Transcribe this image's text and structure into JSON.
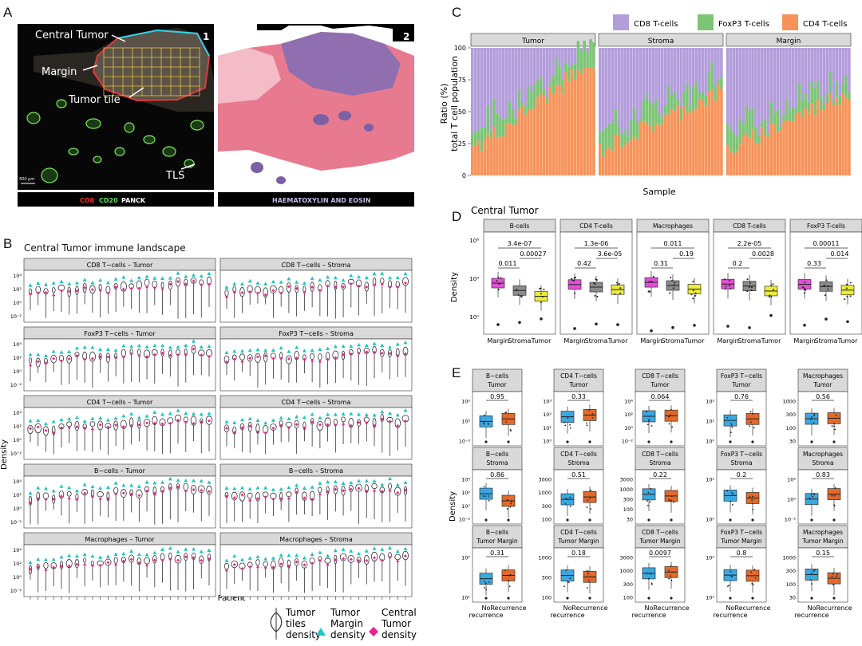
{
  "panels": {
    "a": "A",
    "b": "B",
    "c": "C",
    "d": "D",
    "e": "E"
  },
  "panel_a": {
    "img1_label": "1",
    "img2_label": "2",
    "annot_central_tumor": "Central Tumor",
    "annot_margin": "Margin",
    "annot_tumor_tile": "Tumor tile",
    "annot_tls": "TLS",
    "scale_bar": "500 µm",
    "legend_cd8": "CD8",
    "legend_cd20": "CD20",
    "legend_panck": "PANCK",
    "legend_he": "HAEMATOXYLIN AND EOSIN",
    "colors": {
      "cd8": "#ff2a2a",
      "cd20": "#5de05d",
      "panck": "#ffffff",
      "he": "#c9b7e8"
    }
  },
  "panel_b": {
    "title": "Central Tumor immune landscape",
    "ylabel": "Density",
    "xlabel": "Patient",
    "facets": [
      "CD8 T−cells – Tumor",
      "CD8 T−cells – Stroma",
      "FoxP3 T−cells – Tumor",
      "FoxP3 T−cells – Stroma",
      "CD4 T−cells – Tumor",
      "CD4 T−cells – Stroma",
      "B−cells – Tumor",
      "B−cells – Stroma",
      "Macrophages – Tumor",
      "Macrophages – Stroma"
    ],
    "y_ticks": [
      "10⁴",
      "10²",
      "10⁰",
      "10⁻²"
    ],
    "legend": {
      "tiles": "Tumor tiles density",
      "tiles_l1": "Tumor",
      "tiles_l2": "tiles",
      "tiles_l3": "density",
      "margin_l1": "Tumor",
      "margin_l2": "Margin",
      "margin_l3": "density",
      "central_l1": "Central",
      "central_l2": "Tumor",
      "central_l3": "density"
    },
    "colors": {
      "margin": "#1fc5c1",
      "central": "#e6278f",
      "violin": "#333333"
    }
  },
  "panel_c": {
    "legend": [
      "CD8 T-cells",
      "FoxP3 T-cells",
      "CD4 T-cells"
    ],
    "facets": [
      "Tumor",
      "Stroma",
      "Margin"
    ],
    "ylabel_l1": "Ratio (%)",
    "ylabel_l2": "total T cell population",
    "xlabel": "Sample",
    "y_ticks": [
      "100",
      "75",
      "50",
      "25",
      "0"
    ],
    "colors": {
      "cd8": "#b39ddb",
      "foxp3": "#7cc576",
      "cd4": "#f6935a"
    }
  },
  "panel_d": {
    "title": "Central Tumor",
    "ylabel": "Density",
    "y_ticks": [
      "10⁶",
      "10³",
      "10⁰"
    ],
    "x_labels": [
      "Margin",
      "Stroma",
      "Tumor"
    ],
    "facets": [
      {
        "name": "B-cells",
        "p_top": "3.4e-07",
        "p_left": "0.011",
        "p_right": "0.00027"
      },
      {
        "name": "CD4 T-cells",
        "p_top": "1.3e-06",
        "p_left": "0.42",
        "p_right": "3.6e-05"
      },
      {
        "name": "Macrophages",
        "p_top": "0.011",
        "p_left": "0.31",
        "p_right": "0.19"
      },
      {
        "name": "CD8 T-cells",
        "p_top": "2.2e-05",
        "p_left": "0.2",
        "p_right": "0.0028"
      },
      {
        "name": "FoxP3 T-cells",
        "p_top": "0.00011",
        "p_left": "0.33",
        "p_right": "0.014"
      }
    ],
    "colors": {
      "margin": "#e34fd6",
      "stroma": "#8c8c8c",
      "tumor": "#ecec3a"
    }
  },
  "panel_e": {
    "ylabel": "Density",
    "x_labels": [
      "No recurrence",
      "Recurrence"
    ],
    "x_no_l1": "No",
    "x_no_l2": "recurrence",
    "x_rec": "Recurrence",
    "rows": [
      [
        {
          "l1": "B−cells",
          "l2": "Tumor",
          "p": "0.95",
          "ticks": [
            "10³",
            "10⁰",
            "10⁻³"
          ]
        },
        {
          "l1": "CD4 T−cells",
          "l2": "Tumor",
          "p": "0.33",
          "ticks": [
            "10³",
            "10²",
            "10¹",
            "10⁰"
          ]
        },
        {
          "l1": "CD8 T−cells",
          "l2": "Tumor",
          "p": "0.064",
          "ticks": [
            "10⁴",
            "10²",
            "10⁰",
            "10⁻²"
          ]
        },
        {
          "l1": "FoxP3 T−cells",
          "l2": "Tumor",
          "p": "0.76",
          "ticks": [
            "10²",
            "10¹",
            "10⁰"
          ]
        },
        {
          "l1": "Macrophages",
          "l2": "Tumor",
          "p": "0.56",
          "ticks": [
            "1000",
            "300",
            "100",
            "30"
          ]
        }
      ],
      [
        {
          "l1": "B−cells",
          "l2": "Stroma",
          "p": "0.86",
          "ticks": [
            "10⁴",
            "10²",
            "10⁰",
            "10⁻²"
          ]
        },
        {
          "l1": "CD4 T−cells",
          "l2": "Stroma",
          "p": "0.51",
          "ticks": [
            "3000",
            "1000",
            "300",
            "100"
          ]
        },
        {
          "l1": "CD8 T−cells",
          "l2": "Stroma",
          "p": "0.22",
          "ticks": [
            "3000",
            "1000",
            "300",
            "100",
            "30"
          ]
        },
        {
          "l1": "FoxP3 T−cells",
          "l2": "Stroma",
          "p": "0.2",
          "ticks": [
            "10²",
            "10⁰"
          ]
        },
        {
          "l1": "Macrophages",
          "l2": "Stroma",
          "p": "0.83",
          "ticks": [
            "10²",
            "10⁰",
            "10⁻²"
          ]
        }
      ],
      [
        {
          "l1": "B−cells",
          "l2": "Tumor Margin",
          "p": "0.31",
          "ticks": [
            "10²",
            "10¹"
          ]
        },
        {
          "l1": "CD4 T−cells",
          "l2": "Tumor Margin",
          "p": "0.18",
          "ticks": [
            "1000",
            "300",
            "100"
          ]
        },
        {
          "l1": "CD8 T−cells",
          "l2": "Tumor Margin",
          "p": "0.0097",
          "ticks": [
            "3000",
            "1000",
            "300",
            "100"
          ]
        },
        {
          "l1": "FoxP3 T−cells",
          "l2": "Tumor Margin",
          "p": "0.8",
          "ticks": [
            "10²",
            "10¹"
          ]
        },
        {
          "l1": "Macrophages",
          "l2": "Tumor Margin",
          "p": "0.15",
          "ticks": [
            "1000",
            "300",
            "100",
            "30"
          ]
        }
      ]
    ],
    "colors": {
      "no": "#3aa8e0",
      "rec": "#e2692b"
    }
  }
}
